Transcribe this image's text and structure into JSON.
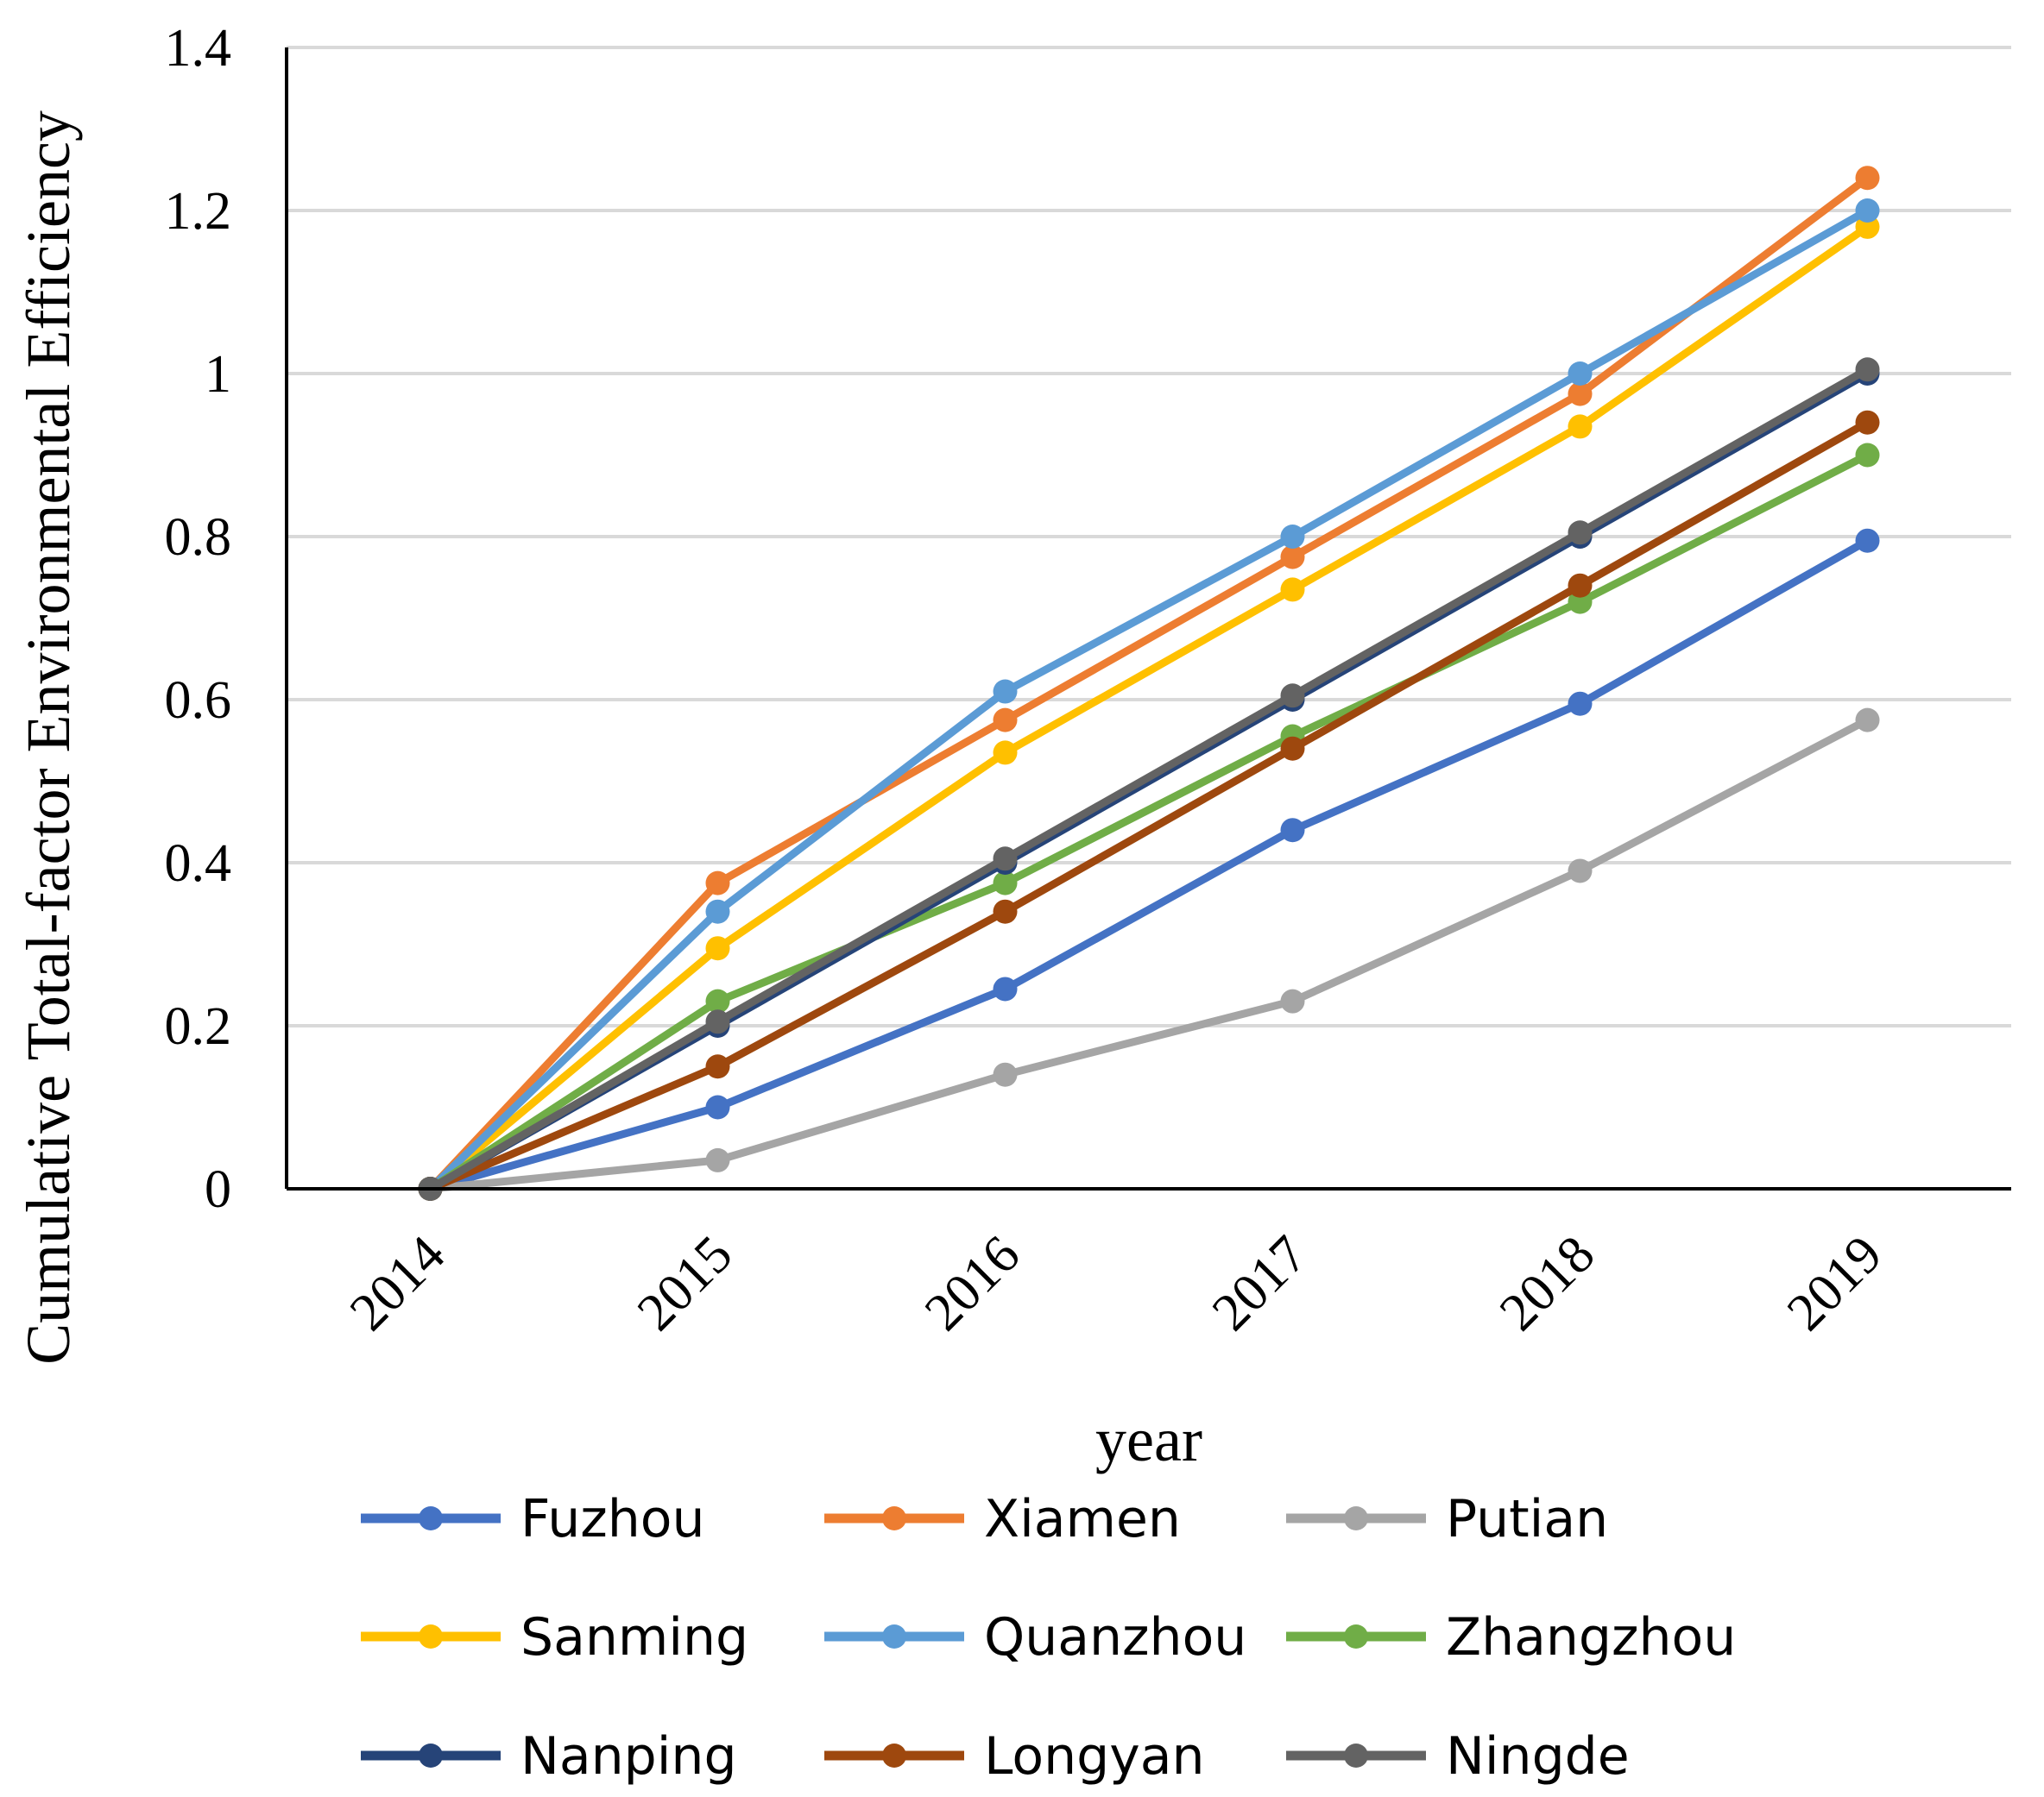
{
  "chart_data": {
    "type": "line",
    "title": "",
    "xlabel": "year",
    "ylabel": "Cumulative Total-factor Environmental Efficiency",
    "ylim": [
      0,
      1.4
    ],
    "y_ticks": [
      0,
      0.2,
      0.4,
      0.6,
      0.8,
      1,
      1.2,
      1.4
    ],
    "y_tick_labels": [
      "0",
      "0.2",
      "0.4",
      "0.6",
      "0.8",
      "1",
      "1.2",
      "1.4"
    ],
    "categories": [
      "2014",
      "2015",
      "2016",
      "2017",
      "2018",
      "2019"
    ],
    "grid": true,
    "legend_position": "bottom",
    "series": [
      {
        "name": "Fuzhou",
        "color": "#4472C4",
        "values": [
          0,
          0.1,
          0.245,
          0.44,
          0.595,
          0.795
        ]
      },
      {
        "name": "Xiamen",
        "color": "#ED7D31",
        "values": [
          0,
          0.375,
          0.575,
          0.775,
          0.975,
          1.24
        ]
      },
      {
        "name": "Putian",
        "color": "#A5A5A5",
        "values": [
          0,
          0.035,
          0.14,
          0.23,
          0.39,
          0.575
        ]
      },
      {
        "name": "Sanming",
        "color": "#FFC000",
        "values": [
          0,
          0.295,
          0.535,
          0.735,
          0.935,
          1.18
        ]
      },
      {
        "name": "Quanzhou",
        "color": "#5B9BD5",
        "values": [
          0,
          0.34,
          0.61,
          0.8,
          1.0,
          1.2
        ]
      },
      {
        "name": "Zhangzhou",
        "color": "#70AD47",
        "values": [
          0,
          0.23,
          0.375,
          0.555,
          0.72,
          0.9
        ]
      },
      {
        "name": "Nanping",
        "color": "#264478",
        "values": [
          0,
          0.2,
          0.4,
          0.6,
          0.8,
          1.0
        ]
      },
      {
        "name": "Longyan",
        "color": "#9E480E",
        "values": [
          0,
          0.15,
          0.34,
          0.54,
          0.74,
          0.94
        ]
      },
      {
        "name": "Ningde",
        "color": "#636363",
        "values": [
          0,
          0.205,
          0.405,
          0.605,
          0.805,
          1.005
        ]
      }
    ]
  }
}
